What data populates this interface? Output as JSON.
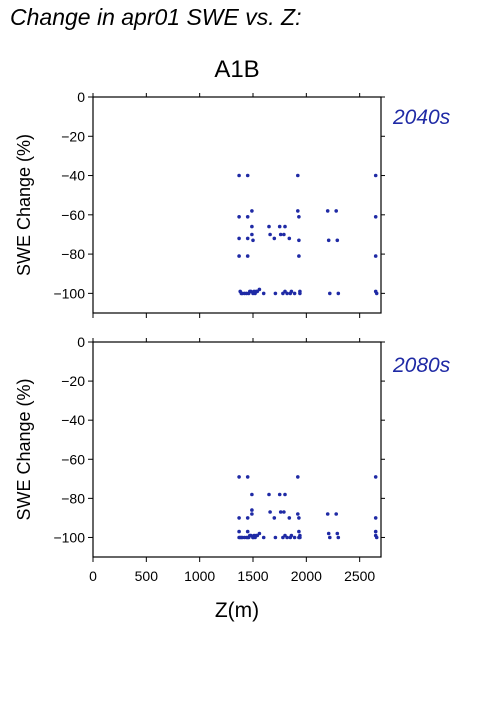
{
  "page": {
    "title": "Change in apr01 SWE vs. Z:",
    "scenario": "A1B"
  },
  "colors": {
    "points": "#1f2aa5",
    "axis": "#000000",
    "decade_label": "#1f2aa5"
  },
  "chart_data": [
    {
      "type": "scatter",
      "title": "2040s",
      "xlabel": "",
      "ylabel": "SWE Change (%)",
      "xlim": [
        0,
        2700
      ],
      "ylim": [
        -110,
        0
      ],
      "xticks": [
        0,
        500,
        1000,
        1500,
        2000,
        2500
      ],
      "xtick_labels_shown": false,
      "yticks": [
        0,
        -20,
        -40,
        -60,
        -80,
        -100
      ],
      "grid": false,
      "series": [
        {
          "x": [
            1370,
            1370,
            1370,
            1370,
            1380,
            1390,
            1400,
            1420,
            1440,
            1450,
            1450,
            1450,
            1450,
            1460,
            1470,
            1480,
            1490,
            1490,
            1490,
            1500,
            1500,
            1510,
            1520,
            1530,
            1540,
            1560,
            1600,
            1650,
            1660,
            1700,
            1710,
            1750,
            1760,
            1780,
            1790,
            1800,
            1800,
            1820,
            1840,
            1850,
            1860,
            1890,
            1920,
            1920,
            1930,
            1930,
            1930,
            1940,
            1940,
            2200,
            2210,
            2220,
            2280,
            2290,
            2300,
            2650,
            2650,
            2650,
            2650,
            2660
          ],
          "y": [
            -40,
            -61,
            -72,
            -81,
            -99,
            -100,
            -100,
            -100,
            -100,
            -40,
            -61,
            -72,
            -81,
            -100,
            -99,
            -99,
            -58,
            -66,
            -70,
            -73,
            -100,
            -99,
            -100,
            -99,
            -99,
            -98,
            -100,
            -66,
            -70,
            -72,
            -100,
            -66,
            -70,
            -100,
            -70,
            -66,
            -99,
            -100,
            -72,
            -100,
            -99,
            -100,
            -40,
            -58,
            -61,
            -73,
            -81,
            -99,
            -100,
            -58,
            -73,
            -100,
            -58,
            -73,
            -100,
            -40,
            -61,
            -81,
            -99,
            -100
          ]
        }
      ]
    },
    {
      "type": "scatter",
      "title": "2080s",
      "xlabel": "Z(m)",
      "ylabel": "SWE Change (%)",
      "xlim": [
        0,
        2700
      ],
      "ylim": [
        -110,
        0
      ],
      "xticks": [
        0,
        500,
        1000,
        1500,
        2000,
        2500
      ],
      "xtick_labels_shown": true,
      "yticks": [
        0,
        -20,
        -40,
        -60,
        -80,
        -100
      ],
      "grid": false,
      "series": [
        {
          "x": [
            1370,
            1370,
            1370,
            1370,
            1380,
            1390,
            1400,
            1420,
            1440,
            1450,
            1450,
            1450,
            1450,
            1460,
            1470,
            1480,
            1490,
            1490,
            1490,
            1500,
            1500,
            1510,
            1520,
            1530,
            1540,
            1560,
            1600,
            1650,
            1660,
            1700,
            1710,
            1750,
            1760,
            1780,
            1790,
            1800,
            1800,
            1820,
            1840,
            1850,
            1860,
            1890,
            1920,
            1920,
            1930,
            1930,
            1930,
            1940,
            1940,
            2200,
            2210,
            2220,
            2280,
            2290,
            2300,
            2650,
            2650,
            2650,
            2650,
            2660
          ],
          "y": [
            -69,
            -90,
            -97,
            -100,
            -100,
            -100,
            -100,
            -100,
            -100,
            -69,
            -90,
            -97,
            -100,
            -100,
            -99,
            -99,
            -78,
            -86,
            -88,
            -100,
            -100,
            -99,
            -100,
            -99,
            -99,
            -98,
            -100,
            -78,
            -87,
            -90,
            -100,
            -78,
            -87,
            -100,
            -87,
            -78,
            -99,
            -100,
            -90,
            -100,
            -99,
            -100,
            -69,
            -88,
            -90,
            -97,
            -100,
            -99,
            -100,
            -88,
            -98,
            -100,
            -88,
            -98,
            -100,
            -69,
            -90,
            -97,
            -99,
            -100
          ]
        }
      ]
    }
  ]
}
